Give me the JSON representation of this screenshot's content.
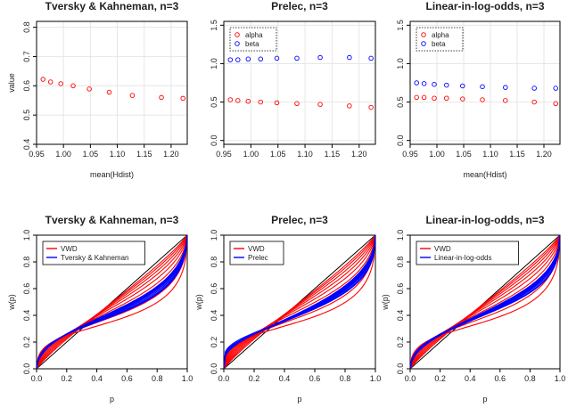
{
  "chart_data": [
    {
      "type": "scatter",
      "title": "Tversky & Kahneman, n=3",
      "xlabel": "mean(Hdist)",
      "ylabel": "value",
      "xlim": [
        0.95,
        1.23
      ],
      "ylim": [
        0.4,
        0.82
      ],
      "xticks": [
        0.95,
        1.0,
        1.05,
        1.1,
        1.15,
        1.2
      ],
      "xtick_labels": [
        "0.95",
        "1.00",
        "1.05",
        "1.10",
        "1.15",
        "1.20"
      ],
      "yticks": [
        0.4,
        0.5,
        0.6,
        0.7,
        0.8
      ],
      "ytick_labels": [
        "0.4",
        "0.5",
        "0.6",
        "0.7",
        "0.8"
      ],
      "grid": true,
      "legend": null,
      "series": [
        {
          "color": "#ff0000",
          "x": [
            0.962,
            0.976,
            0.995,
            1.018,
            1.048,
            1.085,
            1.128,
            1.182,
            1.222
          ],
          "y": [
            0.622,
            0.613,
            0.607,
            0.6,
            0.589,
            0.578,
            0.567,
            0.56,
            0.557
          ]
        }
      ]
    },
    {
      "type": "scatter",
      "title": "Prelec, n=3",
      "xlabel": "",
      "ylabel": "",
      "xlim": [
        0.95,
        1.23
      ],
      "ylim": [
        -0.05,
        1.55
      ],
      "xticks": [
        0.95,
        1.0,
        1.05,
        1.1,
        1.15,
        1.2
      ],
      "xtick_labels": [
        "0.95",
        "1.00",
        "1.05",
        "1.10",
        "1.15",
        "1.20"
      ],
      "yticks": [
        0.0,
        0.5,
        1.0,
        1.5
      ],
      "ytick_labels": [
        "0.0",
        "0.5",
        "1.0",
        "1.5"
      ],
      "grid": true,
      "legend": "top-left",
      "series": [
        {
          "name": "alpha",
          "color": "#ff0000",
          "x": [
            0.962,
            0.976,
            0.995,
            1.018,
            1.048,
            1.085,
            1.128,
            1.182,
            1.222
          ],
          "y": [
            0.53,
            0.52,
            0.51,
            0.5,
            0.49,
            0.48,
            0.47,
            0.45,
            0.43
          ]
        },
        {
          "name": "beta",
          "color": "#0000ff",
          "x": [
            0.962,
            0.976,
            0.995,
            1.018,
            1.048,
            1.085,
            1.128,
            1.182,
            1.222
          ],
          "y": [
            1.05,
            1.05,
            1.06,
            1.06,
            1.07,
            1.07,
            1.08,
            1.08,
            1.07
          ]
        }
      ]
    },
    {
      "type": "scatter",
      "title": "Linear-in-log-odds, n=3",
      "xlabel": "mean(Hdist)",
      "ylabel": "",
      "xlim": [
        0.95,
        1.23
      ],
      "ylim": [
        -0.05,
        1.55
      ],
      "xticks": [
        0.95,
        1.0,
        1.05,
        1.1,
        1.15,
        1.2
      ],
      "xtick_labels": [
        "0.95",
        "1.00",
        "1.05",
        "1.10",
        "1.15",
        "1.20"
      ],
      "yticks": [
        0.0,
        0.5,
        1.0,
        1.5
      ],
      "ytick_labels": [
        "0.0",
        "0.5",
        "1.0",
        "1.5"
      ],
      "grid": true,
      "legend": "top-left",
      "series": [
        {
          "name": "alpha",
          "color": "#ff0000",
          "x": [
            0.962,
            0.976,
            0.995,
            1.018,
            1.048,
            1.085,
            1.128,
            1.182,
            1.222
          ],
          "y": [
            0.56,
            0.56,
            0.55,
            0.55,
            0.54,
            0.53,
            0.52,
            0.5,
            0.48
          ]
        },
        {
          "name": "beta",
          "color": "#0000ff",
          "x": [
            0.962,
            0.976,
            0.995,
            1.018,
            1.048,
            1.085,
            1.128,
            1.182,
            1.222
          ],
          "y": [
            0.75,
            0.74,
            0.73,
            0.72,
            0.71,
            0.7,
            0.69,
            0.68,
            0.68
          ]
        }
      ]
    },
    {
      "type": "line",
      "title": "Tversky & Kahneman, n=3",
      "xlabel": "p",
      "ylabel": "w(p)",
      "xlim": [
        0,
        1
      ],
      "ylim": [
        0,
        1
      ],
      "xticks": [
        0,
        0.2,
        0.4,
        0.6,
        0.8,
        1.0
      ],
      "xtick_labels": [
        "0.0",
        "0.2",
        "0.4",
        "0.6",
        "0.8",
        "1.0"
      ],
      "yticks": [
        0,
        0.2,
        0.4,
        0.6,
        0.8,
        1.0
      ],
      "ytick_labels": [
        "0.0",
        "0.2",
        "0.4",
        "0.6",
        "0.8",
        "1.0"
      ],
      "grid": false,
      "legend": "top-left",
      "diagonal": true,
      "series": [
        {
          "name": "VWD",
          "color": "#ff0000",
          "family": "vwd",
          "params": [
            0.5,
            0.55,
            0.6,
            0.65,
            0.7,
            0.75,
            0.8,
            0.85,
            0.9
          ]
        },
        {
          "name": "Tversky & Kahneman",
          "color": "#0000ff",
          "family": "tk",
          "params": [
            0.557,
            0.56,
            0.567,
            0.578,
            0.589,
            0.6,
            0.607,
            0.613,
            0.622
          ]
        }
      ]
    },
    {
      "type": "line",
      "title": "Prelec, n=3",
      "xlabel": "p",
      "ylabel": "w(p)",
      "xlim": [
        0,
        1
      ],
      "ylim": [
        0,
        1
      ],
      "xticks": [
        0,
        0.2,
        0.4,
        0.6,
        0.8,
        1.0
      ],
      "xtick_labels": [
        "0.0",
        "0.2",
        "0.4",
        "0.6",
        "0.8",
        "1.0"
      ],
      "yticks": [
        0,
        0.2,
        0.4,
        0.6,
        0.8,
        1.0
      ],
      "ytick_labels": [
        "0.0",
        "0.2",
        "0.4",
        "0.6",
        "0.8",
        "1.0"
      ],
      "grid": false,
      "legend": "top-left",
      "diagonal": true,
      "series": [
        {
          "name": "VWD",
          "color": "#ff0000",
          "family": "vwd",
          "params": [
            0.5,
            0.55,
            0.6,
            0.65,
            0.7,
            0.75,
            0.8,
            0.85,
            0.9
          ]
        },
        {
          "name": "Prelec",
          "color": "#0000ff",
          "family": "prelec",
          "params": [
            [
              0.43,
              1.07
            ],
            [
              0.45,
              1.08
            ],
            [
              0.47,
              1.08
            ],
            [
              0.48,
              1.07
            ],
            [
              0.49,
              1.07
            ],
            [
              0.5,
              1.06
            ],
            [
              0.51,
              1.06
            ],
            [
              0.52,
              1.05
            ],
            [
              0.53,
              1.05
            ]
          ]
        }
      ]
    },
    {
      "type": "line",
      "title": "Linear-in-log-odds, n=3",
      "xlabel": "p",
      "ylabel": "w(p)",
      "xlim": [
        0,
        1
      ],
      "ylim": [
        0,
        1
      ],
      "xticks": [
        0,
        0.2,
        0.4,
        0.6,
        0.8,
        1.0
      ],
      "xtick_labels": [
        "0.0",
        "0.2",
        "0.4",
        "0.6",
        "0.8",
        "1.0"
      ],
      "yticks": [
        0,
        0.2,
        0.4,
        0.6,
        0.8,
        1.0
      ],
      "ytick_labels": [
        "0.0",
        "0.2",
        "0.4",
        "0.6",
        "0.8",
        "1.0"
      ],
      "grid": false,
      "legend": "top-left",
      "diagonal": true,
      "series": [
        {
          "name": "VWD",
          "color": "#ff0000",
          "family": "vwd",
          "params": [
            0.5,
            0.55,
            0.6,
            0.65,
            0.7,
            0.75,
            0.8,
            0.85,
            0.9
          ]
        },
        {
          "name": "Linear-in-log-odds",
          "color": "#0000ff",
          "family": "llo",
          "params": [
            [
              0.48,
              0.68
            ],
            [
              0.5,
              0.68
            ],
            [
              0.52,
              0.69
            ],
            [
              0.53,
              0.7
            ],
            [
              0.54,
              0.71
            ],
            [
              0.55,
              0.72
            ],
            [
              0.55,
              0.73
            ],
            [
              0.56,
              0.74
            ],
            [
              0.56,
              0.75
            ]
          ]
        }
      ]
    }
  ]
}
